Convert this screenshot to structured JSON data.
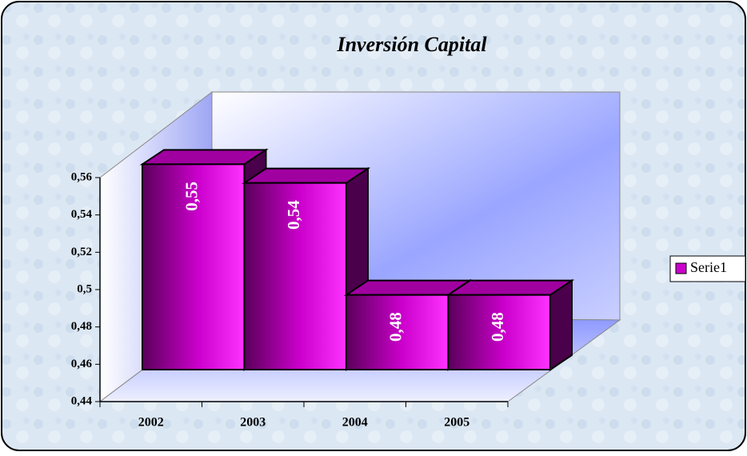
{
  "chart_data": {
    "type": "bar",
    "title": "Inversión Capital",
    "categories": [
      "2002",
      "2003",
      "2004",
      "2005"
    ],
    "series": [
      {
        "name": "Serie1",
        "color": "#cc00cc",
        "values": [
          0.55,
          0.54,
          0.48,
          0.48
        ],
        "value_labels": [
          "0,55",
          "0,54",
          "0,48",
          "0,48"
        ]
      }
    ],
    "ylim": [
      0.44,
      0.56
    ],
    "yticks": [
      {
        "value": 0.44,
        "label": "0,44"
      },
      {
        "value": 0.46,
        "label": "0,46"
      },
      {
        "value": 0.48,
        "label": "0,48"
      },
      {
        "value": 0.5,
        "label": "0,5"
      },
      {
        "value": 0.52,
        "label": "0,52"
      },
      {
        "value": 0.54,
        "label": "0,54"
      },
      {
        "value": 0.56,
        "label": "0,56"
      }
    ],
    "legend": "right"
  }
}
